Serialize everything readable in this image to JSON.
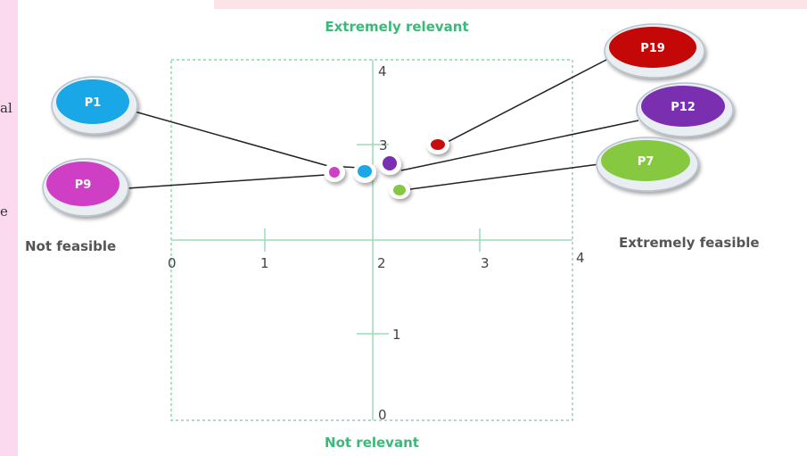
{
  "page": {
    "edge_fragments": [
      "al",
      "e"
    ]
  },
  "chart_data": {
    "type": "scatter",
    "title": "",
    "axis_labels": {
      "top": "Extremely relevant",
      "bottom": "Not relevant",
      "left": "Not feasible",
      "right": "Extremely feasible"
    },
    "xlim": [
      0,
      4
    ],
    "ylim": [
      0,
      4
    ],
    "x_ticks": [
      "0",
      "1",
      "2",
      "3",
      "4"
    ],
    "y_ticks": [
      "0",
      "1",
      "3",
      "4"
    ],
    "points": [
      {
        "name": "P1",
        "x": 1.9,
        "y": 2.6,
        "color": "#1aa7e8"
      },
      {
        "name": "P9",
        "x": 1.6,
        "y": 2.62,
        "color": "#cf3fc6"
      },
      {
        "name": "P12",
        "x": 2.1,
        "y": 2.68,
        "color": "#7a2fb0"
      },
      {
        "name": "P19",
        "x": 2.55,
        "y": 3.02,
        "color": "#c40808"
      },
      {
        "name": "P7",
        "x": 2.15,
        "y": 2.38,
        "color": "#86c940"
      }
    ]
  }
}
